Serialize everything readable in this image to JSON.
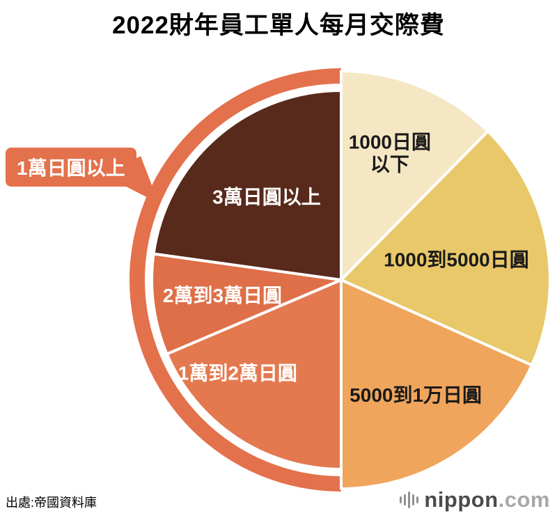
{
  "title": "2022財年員工單人每月交際費",
  "source": "出處:帝國資料庫",
  "callout": {
    "label": "1萬日圓以上"
  },
  "logo": {
    "icon": "soundbars-icon",
    "name": "nippon",
    "tld": ".com"
  },
  "chart_data": {
    "type": "pie",
    "title": "2022財年員工單人每月交際費",
    "start_angle_deg": 0,
    "direction": "clockwise",
    "values_note": "percent shares estimated from slice angles; no numeric labels shown in image",
    "slices": [
      {
        "label": "1000日圓以下",
        "label_lines": [
          "1000日圓",
          "以下"
        ],
        "value": 12.4,
        "color": "#F5E7C3",
        "text_color": "#1a1a1a"
      },
      {
        "label": "1000到5000日圓",
        "value": 19.3,
        "color": "#E9C869",
        "text_color": "#1a1a1a"
      },
      {
        "label": "5000到1万日圓",
        "value": 18.3,
        "color": "#F0A55C",
        "text_color": "#1a1a1a"
      },
      {
        "label": "1萬到2萬日圓",
        "value": 18.6,
        "color": "#E4794F",
        "text_color": "#ffffff"
      },
      {
        "label": "2萬到3萬日圓",
        "value": 8.6,
        "color": "#DE6F48",
        "text_color": "#ffffff"
      },
      {
        "label": "3萬日圓以上",
        "value": 22.8,
        "color": "#582A1C",
        "text_color": "#ffffff"
      }
    ],
    "highlight_arc": {
      "label": "1萬日圓以上",
      "covers": [
        "1萬到2萬日圓",
        "2萬到3萬日圓",
        "3萬日圓以上"
      ],
      "color": "#E3714C"
    }
  }
}
